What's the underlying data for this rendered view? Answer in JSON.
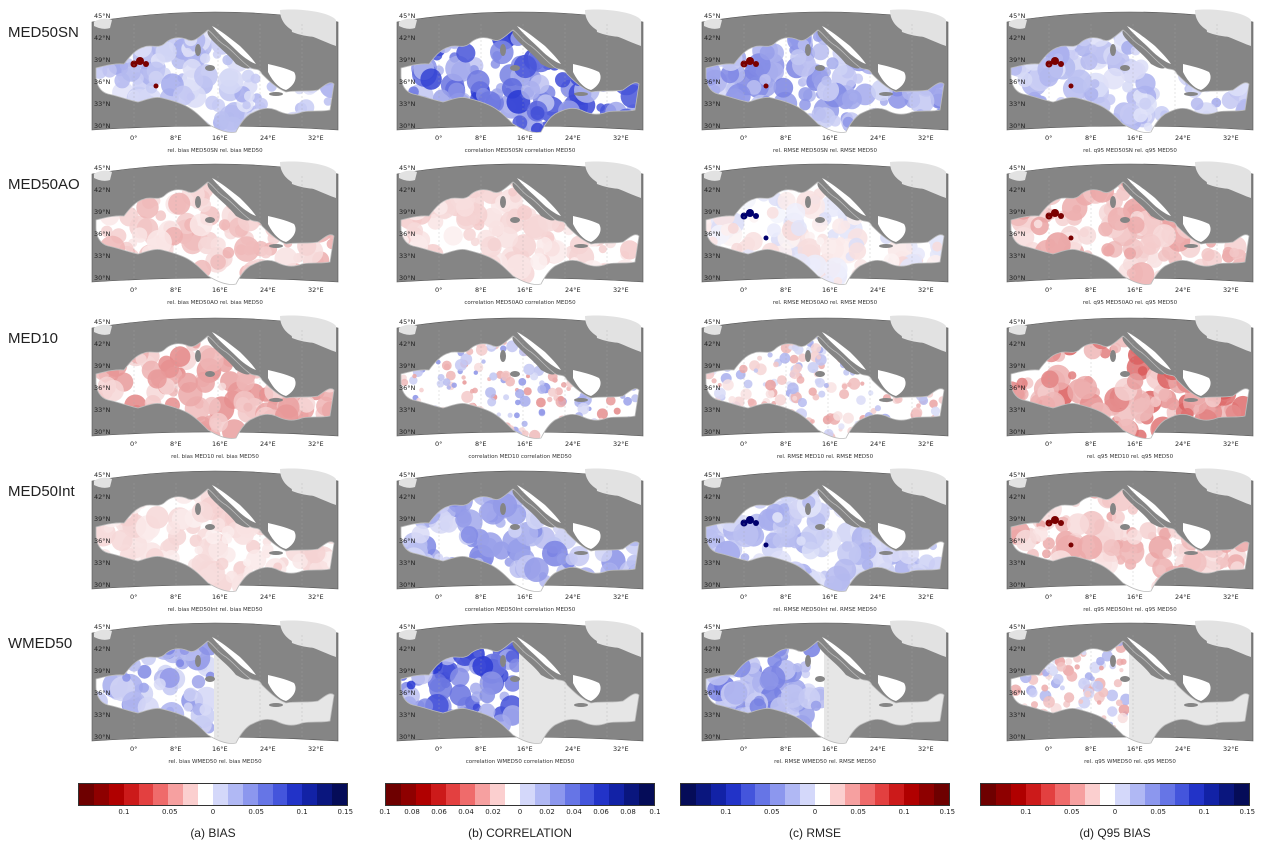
{
  "rows": [
    {
      "label": "MED50SN",
      "captions": [
        "rel. bias MED50SN rel. bias MED50",
        "correlation MED50SN correlation MED50",
        "rel. RMSE MED50SN rel. RMSE MED50",
        "rel. q95 MED50SN rel. q95 MED50"
      ]
    },
    {
      "label": "MED50AO",
      "captions": [
        "rel. bias MED50AO  rel. bias MED50",
        "correlation MED50AO correlation MED50",
        "rel. RMSE MED50AO rel. RMSE MED50",
        "rel. q95 MED50AO rel. q95 MED50"
      ]
    },
    {
      "label": "MED10",
      "captions": [
        "rel. bias MED10 rel. bias MED50",
        "correlation MED10 correlation MED50",
        "rel. RMSE MED10 rel. RMSE MED50",
        "rel. q95 MED10 rel. q95 MED50"
      ]
    },
    {
      "label": "MED50Int",
      "captions": [
        "rel. bias MED50Int rel. bias MED50",
        "correlation MED50Int correlation MED50",
        "rel. RMSE MED50Int rel. RMSE MED50",
        "rel. q95 MED50Int rel. q95 MED50"
      ]
    },
    {
      "label": "WMED50",
      "captions": [
        "rel. bias WMED50 rel. bias MED50",
        "correlation WMED50 correlation MED50",
        "rel. RMSE WMED50 rel. RMSE MED50",
        "rel. q95 WMED50 rel. q95 MED50"
      ]
    }
  ],
  "lat_labels": [
    "45°N",
    "42°N",
    "39°N",
    "36°N",
    "33°N",
    "30°N"
  ],
  "lon_labels": [
    "0°",
    "8°E",
    "16°E",
    "24°E",
    "32°E"
  ],
  "colorbars": [
    {
      "title": "(a) BIAS",
      "scheme": "red-white-blue",
      "ticks": [
        "0.1",
        "0.05",
        "0",
        "0.05",
        "0.1",
        "0.15"
      ]
    },
    {
      "title": "(b) CORRELATION",
      "scheme": "red-white-blue",
      "ticks": [
        "0.1",
        "0.08",
        "0.06",
        "0.04",
        "0.02",
        "0",
        "0.02",
        "0.04",
        "0.06",
        "0.08",
        "0.1"
      ]
    },
    {
      "title": "(c) RMSE",
      "scheme": "blue-white-red",
      "ticks": [
        "0.1",
        "0.05",
        "0",
        "0.05",
        "0.1",
        "0.15"
      ]
    },
    {
      "title": "(d) Q95 BIAS",
      "scheme": "red-white-blue",
      "ticks": [
        "0.1",
        "0.05",
        "0",
        "0.05",
        "0.1",
        "0.15"
      ]
    }
  ],
  "colors": {
    "land": "#858585",
    "outer_land": "#e2e2e2",
    "sea_white": "#ffffff",
    "strong_red": "#7a0000",
    "strong_blue": "#00006e",
    "masked_sea": "#e6e6e6"
  },
  "cells": [
    [
      {
        "tint": "blue",
        "v": 0.35,
        "dots": "red"
      },
      {
        "tint": "blue",
        "v": 0.8,
        "dots": "none"
      },
      {
        "tint": "blue",
        "v": 0.5,
        "dots": "red"
      },
      {
        "tint": "blue",
        "v": 0.35,
        "dots": "red"
      }
    ],
    [
      {
        "tint": "red",
        "v": 0.3,
        "dots": "none"
      },
      {
        "tint": "red",
        "v": 0.2,
        "dots": "none"
      },
      {
        "tint": "white",
        "v": 0.15,
        "dots": "blue"
      },
      {
        "tint": "red",
        "v": 0.35,
        "dots": "red"
      }
    ],
    [
      {
        "tint": "red",
        "v": 0.45,
        "dots": "none"
      },
      {
        "tint": "mixed",
        "v": 0.45,
        "dots": "none"
      },
      {
        "tint": "mixed",
        "v": 0.35,
        "dots": "none"
      },
      {
        "tint": "red",
        "v": 0.6,
        "dots": "none"
      }
    ],
    [
      {
        "tint": "red",
        "v": 0.18,
        "dots": "none"
      },
      {
        "tint": "blue",
        "v": 0.5,
        "dots": "none"
      },
      {
        "tint": "blue",
        "v": 0.35,
        "dots": "blue"
      },
      {
        "tint": "red",
        "v": 0.35,
        "dots": "red"
      }
    ],
    [
      {
        "tint": "blue",
        "v": 0.5,
        "dots": "none",
        "west_only": true
      },
      {
        "tint": "blue",
        "v": 0.85,
        "dots": "none",
        "west_only": true
      },
      {
        "tint": "blue",
        "v": 0.55,
        "dots": "none",
        "west_only": true
      },
      {
        "tint": "mixed",
        "v": 0.35,
        "dots": "none",
        "west_only": true
      }
    ]
  ]
}
